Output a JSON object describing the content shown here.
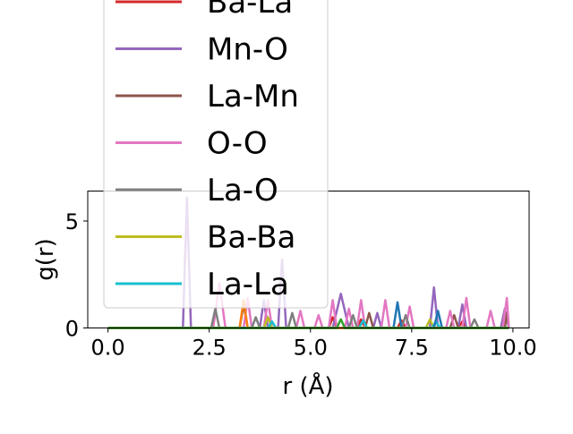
{
  "chart_data": {
    "type": "line",
    "xlabel": "r (Å)",
    "ylabel": "g(r)",
    "xlim": [
      -0.5,
      10.4
    ],
    "ylim": [
      0,
      6.4
    ],
    "xticks": [
      {
        "value": 0.0,
        "label": "0.0"
      },
      {
        "value": 2.5,
        "label": "2.5"
      },
      {
        "value": 5.0,
        "label": "5.0"
      },
      {
        "value": 7.5,
        "label": "7.5"
      },
      {
        "value": 10.0,
        "label": "10.0"
      }
    ],
    "yticks": [
      {
        "value": 0,
        "label": "0"
      },
      {
        "value": 5,
        "label": "5"
      }
    ],
    "grid": false,
    "legend_position": "upper-center, overflowing above the axes",
    "series": [
      {
        "name": "Ba-La",
        "color": "#d62728",
        "x": [
          0,
          5.45,
          5.55,
          5.65,
          6.15,
          6.25,
          6.35,
          7.15,
          7.25,
          7.35,
          8.65,
          8.75,
          8.85,
          9.9
        ],
        "y": [
          0,
          0,
          0.5,
          0,
          0,
          0.4,
          0,
          0,
          0.35,
          0,
          0,
          0.3,
          0,
          0
        ]
      },
      {
        "name": "Mn-O",
        "color": "#9467bd",
        "x": [
          0,
          1.85,
          1.95,
          2.05,
          3.75,
          3.85,
          3.95,
          4.2,
          4.3,
          4.4,
          5.55,
          5.75,
          5.95,
          6.55,
          6.65,
          6.75,
          7.95,
          8.05,
          8.15,
          8.65,
          8.75,
          8.85,
          9.7,
          9.8,
          9.9
        ],
        "y": [
          0,
          0,
          6.1,
          0,
          0,
          1.3,
          0,
          0,
          3.2,
          0,
          0,
          1.6,
          0,
          0,
          0.7,
          0,
          0,
          1.9,
          0,
          0,
          1.1,
          0,
          0,
          0.9,
          0
        ]
      },
      {
        "name": "La-Mn",
        "color": "#8c564b",
        "x": [
          0,
          3.25,
          3.35,
          3.45,
          6.35,
          6.45,
          6.55,
          8.45,
          8.55,
          8.65,
          9.8,
          9.85,
          9.9
        ],
        "y": [
          0,
          0,
          1.1,
          0,
          0,
          0.7,
          0,
          0,
          0.6,
          0,
          0,
          0.7,
          0
        ]
      },
      {
        "name": "O-O",
        "color": "#e377c2",
        "x": [
          0,
          2.6,
          2.75,
          2.9,
          3.35,
          3.45,
          3.55,
          3.85,
          3.95,
          4.05,
          4.65,
          4.75,
          4.85,
          5.1,
          5.2,
          5.3,
          5.45,
          5.55,
          5.65,
          5.85,
          5.95,
          6.05,
          6.15,
          6.25,
          6.35,
          6.75,
          6.85,
          6.95,
          7.35,
          7.45,
          7.55,
          8.35,
          8.45,
          8.55,
          8.75,
          8.85,
          8.95,
          9.35,
          9.45,
          9.55,
          9.75,
          9.85,
          9.9
        ],
        "y": [
          0,
          0,
          2.1,
          0,
          0,
          1.4,
          0,
          0,
          1.3,
          0,
          0,
          0.8,
          0,
          0,
          0.6,
          0,
          0,
          1.3,
          0,
          0,
          0.9,
          0,
          0,
          1.3,
          0,
          0,
          1.3,
          0,
          0,
          1.0,
          0,
          0,
          0.8,
          0,
          0,
          1.4,
          0,
          0,
          0.8,
          0,
          0,
          1.4,
          0
        ]
      },
      {
        "name": "La-O",
        "color": "#7f7f7f",
        "x": [
          0,
          2.55,
          2.65,
          2.75,
          3.55,
          3.65,
          3.75,
          4.45,
          4.55,
          4.65,
          5.95,
          6.05,
          6.15,
          7.25,
          7.35,
          7.45,
          8.95,
          9.05,
          9.15,
          9.9
        ],
        "y": [
          0,
          0,
          0.9,
          0,
          0,
          0.5,
          0,
          0,
          0.7,
          0,
          0,
          0.6,
          0,
          0,
          0.6,
          0,
          0,
          0.4,
          0,
          0
        ]
      },
      {
        "name": "Ba-Ba",
        "color": "#bcbd22",
        "x": [
          0,
          3.85,
          3.95,
          4.05,
          7.85,
          7.95,
          8.05,
          9.9
        ],
        "y": [
          0,
          0,
          0.5,
          0,
          0,
          0.4,
          0,
          0
        ]
      },
      {
        "name": "La-La",
        "color": "#17becf",
        "x": [
          0,
          3.95,
          4.05,
          4.15,
          6.2,
          6.3,
          6.4,
          8.0,
          8.1,
          8.2,
          9.9
        ],
        "y": [
          0,
          0,
          0.3,
          0,
          0,
          0.35,
          0,
          0,
          0.3,
          0,
          0
        ]
      },
      {
        "name": "",
        "color": "#1f77b4",
        "x": [
          0,
          7.05,
          7.15,
          7.25,
          8.05,
          8.15,
          8.25,
          9.9
        ],
        "y": [
          0,
          0,
          1.2,
          0,
          0,
          0.8,
          0,
          0
        ]
      },
      {
        "name": "",
        "color": "#ff7f0e",
        "x": [
          0,
          3.25,
          3.35,
          3.45,
          9.9
        ],
        "y": [
          0,
          0,
          1.3,
          0,
          0
        ]
      },
      {
        "name": "",
        "color": "#2ca02c",
        "x": [
          0,
          5.65,
          5.75,
          5.85,
          9.9
        ],
        "y": [
          0,
          0,
          0.4,
          0,
          0
        ]
      }
    ],
    "legend": [
      {
        "label": "Ba-La",
        "color": "#d62728"
      },
      {
        "label": "Mn-O",
        "color": "#9467bd"
      },
      {
        "label": "La-Mn",
        "color": "#8c564b"
      },
      {
        "label": "O-O",
        "color": "#e377c2"
      },
      {
        "label": "La-O",
        "color": "#7f7f7f"
      },
      {
        "label": "Ba-Ba",
        "color": "#bcbd22"
      },
      {
        "label": "La-La",
        "color": "#17becf"
      }
    ]
  }
}
